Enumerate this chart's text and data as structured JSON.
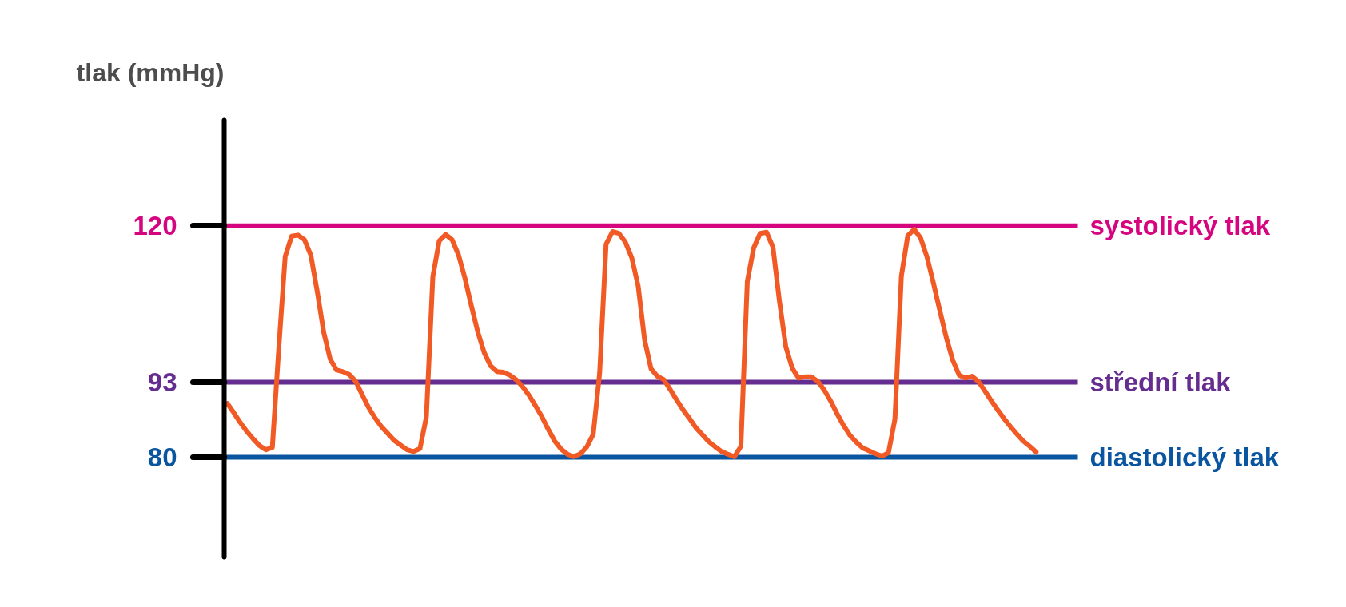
{
  "chart_data": {
    "type": "line",
    "ylabel": "tlak (mmHg)",
    "categories": [
      null,
      null,
      null,
      null,
      null,
      null,
      null,
      null,
      null,
      null,
      null,
      null,
      null,
      null,
      null,
      null,
      null,
      null,
      null,
      null,
      null,
      null,
      null,
      null,
      null,
      null,
      null,
      null,
      null,
      null,
      null,
      null,
      null,
      null,
      null,
      null,
      null,
      null,
      null,
      null,
      null,
      null,
      null,
      null,
      null,
      null,
      null,
      null,
      null,
      null,
      null,
      null,
      null,
      null,
      null,
      null,
      null,
      null,
      null,
      null,
      null,
      null,
      null,
      null,
      null,
      null,
      null,
      null,
      null,
      null,
      null,
      null,
      null,
      null,
      null,
      null,
      null,
      null,
      null,
      null,
      null,
      null,
      null,
      null,
      null,
      null,
      null,
      null,
      null,
      null,
      null,
      null,
      null,
      null,
      null,
      null,
      null,
      null,
      null,
      null,
      null,
      null,
      null,
      null,
      null,
      null,
      null,
      null,
      null,
      null,
      null,
      null,
      null,
      null,
      null,
      null,
      null,
      null,
      null,
      null,
      null,
      null,
      null,
      null,
      null,
      null,
      null,
      null,
      null,
      null,
      null,
      null,
      null
    ],
    "series": [
      {
        "color": "#f15a24",
        "values": [
          89.3,
          87.7,
          86.0,
          84.5,
          83.2,
          82.0,
          81.3,
          81.7,
          98.8,
          114.7,
          118.2,
          118.4,
          117.6,
          114.9,
          108.6,
          101.6,
          97.0,
          95.1,
          94.8,
          94.3,
          93.1,
          90.8,
          88.6,
          86.8,
          85.3,
          84.1,
          82.9,
          82.1,
          81.3,
          81.0,
          81.5,
          87.0,
          111.2,
          117.4,
          118.5,
          117.6,
          115.0,
          111.0,
          106.2,
          101.7,
          98.1,
          95.8,
          94.8,
          94.7,
          94.2,
          93.4,
          92.2,
          90.7,
          88.9,
          87.0,
          84.8,
          82.8,
          81.4,
          80.5,
          80.1,
          80.6,
          81.8,
          84.0,
          94.6,
          116.8,
          119.0,
          118.7,
          117.2,
          114.5,
          109.6,
          100.3,
          95.3,
          94.0,
          93.4,
          91.7,
          89.9,
          88.2,
          86.7,
          85.1,
          83.9,
          82.7,
          81.8,
          81.0,
          80.5,
          80.1,
          81.9,
          110.4,
          116.2,
          118.7,
          118.9,
          116.3,
          107.0,
          99.1,
          95.4,
          93.7,
          93.9,
          93.9,
          93.1,
          91.6,
          89.7,
          87.5,
          85.5,
          83.8,
          82.6,
          81.6,
          81.1,
          80.6,
          80.2,
          80.8,
          86.6,
          111.3,
          118.3,
          119.4,
          117.9,
          114.6,
          110.1,
          105.3,
          100.7,
          96.8,
          94.2,
          93.7,
          94.0,
          93.1,
          91.5,
          89.8,
          88.2,
          86.7,
          85.3,
          84.0,
          82.8,
          81.9,
          80.9,
          null,
          null,
          null,
          null,
          null,
          null
        ]
      }
    ],
    "ylim": [
      62.7,
      138.2
    ],
    "yticks": [
      80,
      93,
      120
    ],
    "tick_labels": "y",
    "ref_lines": [
      {
        "axis": "y",
        "value": 120,
        "label": "systolický tlak",
        "color": "#d6047e"
      },
      {
        "axis": "y",
        "value": 93,
        "label": "střední tlak",
        "color": "#652d90"
      },
      {
        "axis": "y",
        "value": 80,
        "label": "diastolický tlak",
        "color": "#0a55a0"
      }
    ]
  }
}
